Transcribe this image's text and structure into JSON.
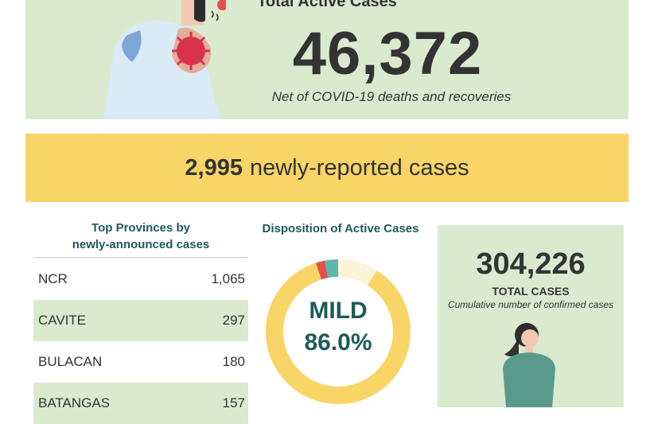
{
  "active": {
    "title": "Total Active Cases",
    "number": "46,372",
    "note": "Net of COVID-19 deaths and recoveries"
  },
  "new_cases": {
    "number": "2,995",
    "label": "newly-reported cases"
  },
  "provinces": {
    "title_line1": "Top Provinces by",
    "title_line2": "newly-announced cases",
    "rows": [
      {
        "name": "NCR",
        "value": "1,065"
      },
      {
        "name": "CAVITE",
        "value": "297"
      },
      {
        "name": "BULACAN",
        "value": "180"
      },
      {
        "name": "BATANGAS",
        "value": "157"
      }
    ]
  },
  "disposition": {
    "title": "Disposition of Active Cases",
    "center_label": "MILD",
    "center_value": "86.0%",
    "segments": [
      {
        "share": 0.86,
        "color": "#f9d466"
      },
      {
        "share": 0.09,
        "color": "#fcf3d9"
      },
      {
        "share": 0.03,
        "color": "#5bb6b0"
      },
      {
        "share": 0.02,
        "color": "#e2504c"
      }
    ],
    "text_color": "#1d5b5b"
  },
  "total": {
    "number": "304,226",
    "label": "TOTAL CASES",
    "note": "Cumulative number of confirmed cases"
  },
  "colors": {
    "green_panel": "#d9eacf",
    "yellow_panel": "#f9d466",
    "heading_teal": "#1d5b5b",
    "virus_red": "#d9334a"
  },
  "illustrations": [
    "person-coughing-icon",
    "virus-icon",
    "woman-standing-icon"
  ]
}
